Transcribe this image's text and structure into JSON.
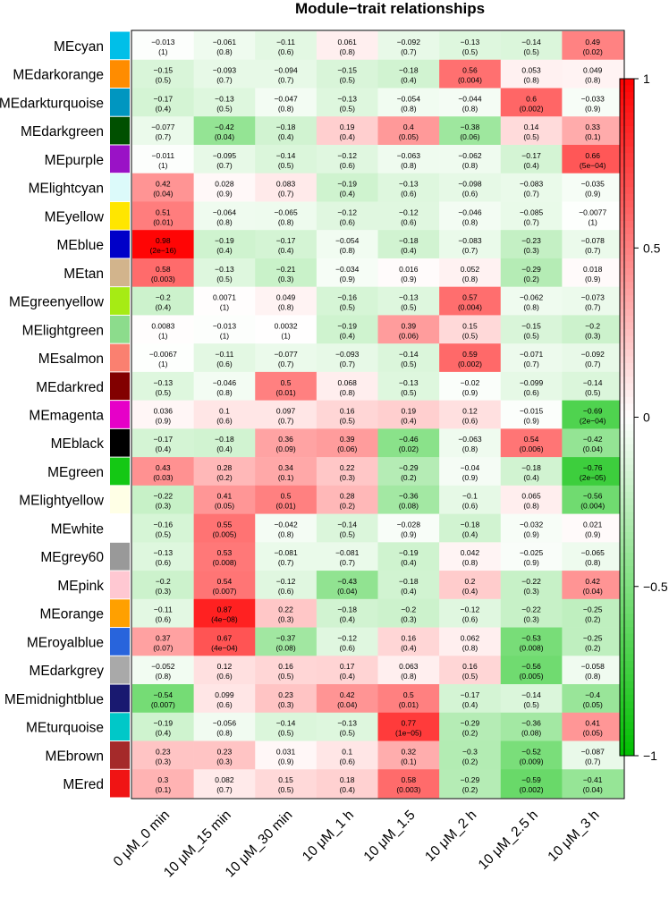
{
  "chart_data": {
    "type": "heatmap",
    "title": "Module−trait relationships",
    "columns": [
      "0 μM_0 min",
      "10 μM_15 min",
      "10 μM_30 min",
      "10 μM_1 h",
      "10 μM_1.5",
      "10 μM_2 h",
      "10 μM_2.5 h",
      "10 μM_3 h"
    ],
    "rows": [
      {
        "name": "MEcyan",
        "color": "#00BFE8",
        "cells": [
          [
            "−0.013",
            "(1)"
          ],
          [
            "−0.061",
            "(0.8)"
          ],
          [
            "−0.11",
            "(0.6)"
          ],
          [
            "0.061",
            "(0.8)"
          ],
          [
            "−0.092",
            "(0.7)"
          ],
          [
            "−0.13",
            "(0.5)"
          ],
          [
            "−0.14",
            "(0.5)"
          ],
          [
            "0.49",
            "(0.02)"
          ]
        ]
      },
      {
        "name": "MEdarkorange",
        "color": "#FF8C00",
        "cells": [
          [
            "−0.15",
            "(0.5)"
          ],
          [
            "−0.093",
            "(0.7)"
          ],
          [
            "−0.094",
            "(0.7)"
          ],
          [
            "−0.15",
            "(0.5)"
          ],
          [
            "−0.18",
            "(0.4)"
          ],
          [
            "0.56",
            "(0.004)"
          ],
          [
            "0.053",
            "(0.8)"
          ],
          [
            "0.049",
            "(0.8)"
          ]
        ]
      },
      {
        "name": "MEdarkturquoise",
        "color": "#0096C0",
        "cells": [
          [
            "−0.17",
            "(0.4)"
          ],
          [
            "−0.13",
            "(0.5)"
          ],
          [
            "−0.047",
            "(0.8)"
          ],
          [
            "−0.13",
            "(0.5)"
          ],
          [
            "−0.054",
            "(0.8)"
          ],
          [
            "−0.044",
            "(0.8)"
          ],
          [
            "0.6",
            "(0.002)"
          ],
          [
            "−0.033",
            "(0.9)"
          ]
        ]
      },
      {
        "name": "MEdarkgreen",
        "color": "#005000",
        "cells": [
          [
            "−0.077",
            "(0.7)"
          ],
          [
            "−0.42",
            "(0.04)"
          ],
          [
            "−0.18",
            "(0.4)"
          ],
          [
            "0.19",
            "(0.4)"
          ],
          [
            "0.4",
            "(0.05)"
          ],
          [
            "−0.38",
            "(0.06)"
          ],
          [
            "0.14",
            "(0.5)"
          ],
          [
            "0.33",
            "(0.1)"
          ]
        ]
      },
      {
        "name": "MEpurple",
        "color": "#9A12C6",
        "cells": [
          [
            "−0.011",
            "(1)"
          ],
          [
            "−0.095",
            "(0.7)"
          ],
          [
            "−0.14",
            "(0.5)"
          ],
          [
            "−0.12",
            "(0.6)"
          ],
          [
            "−0.063",
            "(0.8)"
          ],
          [
            "−0.062",
            "(0.8)"
          ],
          [
            "−0.17",
            "(0.4)"
          ],
          [
            "0.66",
            "(5e−04)"
          ]
        ]
      },
      {
        "name": "MElightcyan",
        "color": "#DCFAFA",
        "cells": [
          [
            "0.42",
            "(0.04)"
          ],
          [
            "0.028",
            "(0.9)"
          ],
          [
            "0.083",
            "(0.7)"
          ],
          [
            "−0.19",
            "(0.4)"
          ],
          [
            "−0.13",
            "(0.6)"
          ],
          [
            "−0.098",
            "(0.6)"
          ],
          [
            "−0.083",
            "(0.7)"
          ],
          [
            "−0.035",
            "(0.9)"
          ]
        ]
      },
      {
        "name": "MEyellow",
        "color": "#FFE600",
        "cells": [
          [
            "0.51",
            "(0.01)"
          ],
          [
            "−0.064",
            "(0.8)"
          ],
          [
            "−0.065",
            "(0.8)"
          ],
          [
            "−0.12",
            "(0.6)"
          ],
          [
            "−0.12",
            "(0.6)"
          ],
          [
            "−0.046",
            "(0.8)"
          ],
          [
            "−0.085",
            "(0.7)"
          ],
          [
            "−0.0077",
            "(1)"
          ]
        ]
      },
      {
        "name": "MEblue",
        "color": "#0000C8",
        "cells": [
          [
            "0.98",
            "(2e−16)"
          ],
          [
            "−0.19",
            "(0.4)"
          ],
          [
            "−0.17",
            "(0.4)"
          ],
          [
            "−0.054",
            "(0.8)"
          ],
          [
            "−0.18",
            "(0.4)"
          ],
          [
            "−0.083",
            "(0.7)"
          ],
          [
            "−0.23",
            "(0.3)"
          ],
          [
            "−0.078",
            "(0.7)"
          ]
        ]
      },
      {
        "name": "MEtan",
        "color": "#D2B48C",
        "cells": [
          [
            "0.58",
            "(0.003)"
          ],
          [
            "−0.13",
            "(0.5)"
          ],
          [
            "−0.21",
            "(0.3)"
          ],
          [
            "−0.034",
            "(0.9)"
          ],
          [
            "0.016",
            "(0.9)"
          ],
          [
            "0.052",
            "(0.8)"
          ],
          [
            "−0.29",
            "(0.2)"
          ],
          [
            "0.018",
            "(0.9)"
          ]
        ]
      },
      {
        "name": "MEgreenyellow",
        "color": "#A6EB14",
        "cells": [
          [
            "−0.2",
            "(0.4)"
          ],
          [
            "0.0071",
            "(1)"
          ],
          [
            "0.049",
            "(0.8)"
          ],
          [
            "−0.16",
            "(0.5)"
          ],
          [
            "−0.13",
            "(0.5)"
          ],
          [
            "0.57",
            "(0.004)"
          ],
          [
            "−0.062",
            "(0.8)"
          ],
          [
            "−0.073",
            "(0.7)"
          ]
        ]
      },
      {
        "name": "MElightgreen",
        "color": "#8CDC8C",
        "cells": [
          [
            "0.0083",
            "(1)"
          ],
          [
            "−0.013",
            "(1)"
          ],
          [
            "0.0032",
            "(1)"
          ],
          [
            "−0.19",
            "(0.4)"
          ],
          [
            "0.39",
            "(0.06)"
          ],
          [
            "0.15",
            "(0.5)"
          ],
          [
            "−0.15",
            "(0.5)"
          ],
          [
            "−0.2",
            "(0.3)"
          ]
        ]
      },
      {
        "name": "MEsalmon",
        "color": "#FA8070",
        "cells": [
          [
            "−0.0067",
            "(1)"
          ],
          [
            "−0.11",
            "(0.6)"
          ],
          [
            "−0.077",
            "(0.7)"
          ],
          [
            "−0.093",
            "(0.7)"
          ],
          [
            "−0.14",
            "(0.5)"
          ],
          [
            "0.59",
            "(0.002)"
          ],
          [
            "−0.071",
            "(0.7)"
          ],
          [
            "−0.092",
            "(0.7)"
          ]
        ]
      },
      {
        "name": "MEdarkred",
        "color": "#820000",
        "cells": [
          [
            "−0.13",
            "(0.5)"
          ],
          [
            "−0.046",
            "(0.8)"
          ],
          [
            "0.5",
            "(0.01)"
          ],
          [
            "0.068",
            "(0.8)"
          ],
          [
            "−0.13",
            "(0.5)"
          ],
          [
            "−0.02",
            "(0.9)"
          ],
          [
            "−0.099",
            "(0.6)"
          ],
          [
            "−0.14",
            "(0.5)"
          ]
        ]
      },
      {
        "name": "MEmagenta",
        "color": "#E600C8",
        "cells": [
          [
            "0.036",
            "(0.9)"
          ],
          [
            "0.1",
            "(0.6)"
          ],
          [
            "0.097",
            "(0.7)"
          ],
          [
            "0.16",
            "(0.5)"
          ],
          [
            "0.19",
            "(0.4)"
          ],
          [
            "0.12",
            "(0.6)"
          ],
          [
            "−0.015",
            "(0.9)"
          ],
          [
            "−0.69",
            "(2e−04)"
          ]
        ]
      },
      {
        "name": "MEblack",
        "color": "#000000",
        "cells": [
          [
            "−0.17",
            "(0.4)"
          ],
          [
            "−0.18",
            "(0.4)"
          ],
          [
            "0.36",
            "(0.09)"
          ],
          [
            "0.39",
            "(0.06)"
          ],
          [
            "−0.46",
            "(0.02)"
          ],
          [
            "−0.063",
            "(0.8)"
          ],
          [
            "0.54",
            "(0.006)"
          ],
          [
            "−0.42",
            "(0.04)"
          ]
        ]
      },
      {
        "name": "MEgreen",
        "color": "#14C814",
        "cells": [
          [
            "0.43",
            "(0.03)"
          ],
          [
            "0.28",
            "(0.2)"
          ],
          [
            "0.34",
            "(0.1)"
          ],
          [
            "0.22",
            "(0.3)"
          ],
          [
            "−0.29",
            "(0.2)"
          ],
          [
            "−0.04",
            "(0.9)"
          ],
          [
            "−0.18",
            "(0.4)"
          ],
          [
            "−0.76",
            "(2e−05)"
          ]
        ]
      },
      {
        "name": "MElightyellow",
        "color": "#FFFFE6",
        "cells": [
          [
            "−0.22",
            "(0.3)"
          ],
          [
            "0.41",
            "(0.05)"
          ],
          [
            "0.5",
            "(0.01)"
          ],
          [
            "0.28",
            "(0.2)"
          ],
          [
            "−0.36",
            "(0.08)"
          ],
          [
            "−0.1",
            "(0.6)"
          ],
          [
            "0.065",
            "(0.8)"
          ],
          [
            "−0.56",
            "(0.004)"
          ]
        ]
      },
      {
        "name": "MEwhite",
        "color": "#FFFFFF",
        "cells": [
          [
            "−0.16",
            "(0.5)"
          ],
          [
            "0.55",
            "(0.005)"
          ],
          [
            "−0.042",
            "(0.8)"
          ],
          [
            "−0.14",
            "(0.5)"
          ],
          [
            "−0.028",
            "(0.9)"
          ],
          [
            "−0.18",
            "(0.4)"
          ],
          [
            "−0.032",
            "(0.9)"
          ],
          [
            "0.021",
            "(0.9)"
          ]
        ]
      },
      {
        "name": "MEgrey60",
        "color": "#999999",
        "cells": [
          [
            "−0.13",
            "(0.6)"
          ],
          [
            "0.53",
            "(0.008)"
          ],
          [
            "−0.081",
            "(0.7)"
          ],
          [
            "−0.081",
            "(0.7)"
          ],
          [
            "−0.19",
            "(0.4)"
          ],
          [
            "0.042",
            "(0.8)"
          ],
          [
            "−0.025",
            "(0.9)"
          ],
          [
            "−0.065",
            "(0.8)"
          ]
        ]
      },
      {
        "name": "MEpink",
        "color": "#FFC8D2",
        "cells": [
          [
            "−0.2",
            "(0.3)"
          ],
          [
            "0.54",
            "(0.007)"
          ],
          [
            "−0.12",
            "(0.6)"
          ],
          [
            "−0.43",
            "(0.04)"
          ],
          [
            "−0.18",
            "(0.4)"
          ],
          [
            "0.2",
            "(0.4)"
          ],
          [
            "−0.22",
            "(0.3)"
          ],
          [
            "0.42",
            "(0.04)"
          ]
        ]
      },
      {
        "name": "MEorange",
        "color": "#FFA000",
        "cells": [
          [
            "−0.11",
            "(0.6)"
          ],
          [
            "0.87",
            "(4e−08)"
          ],
          [
            "0.22",
            "(0.3)"
          ],
          [
            "−0.18",
            "(0.4)"
          ],
          [
            "−0.2",
            "(0.3)"
          ],
          [
            "−0.12",
            "(0.6)"
          ],
          [
            "−0.22",
            "(0.3)"
          ],
          [
            "−0.25",
            "(0.2)"
          ]
        ]
      },
      {
        "name": "MEroyalblue",
        "color": "#2864DC",
        "cells": [
          [
            "0.37",
            "(0.07)"
          ],
          [
            "0.67",
            "(4e−04)"
          ],
          [
            "−0.37",
            "(0.08)"
          ],
          [
            "−0.12",
            "(0.6)"
          ],
          [
            "0.16",
            "(0.4)"
          ],
          [
            "0.062",
            "(0.8)"
          ],
          [
            "−0.53",
            "(0.008)"
          ],
          [
            "−0.25",
            "(0.2)"
          ]
        ]
      },
      {
        "name": "MEdarkgrey",
        "color": "#A9A9A9",
        "cells": [
          [
            "−0.052",
            "(0.8)"
          ],
          [
            "0.12",
            "(0.6)"
          ],
          [
            "0.16",
            "(0.5)"
          ],
          [
            "0.17",
            "(0.4)"
          ],
          [
            "0.063",
            "(0.8)"
          ],
          [
            "0.16",
            "(0.5)"
          ],
          [
            "−0.56",
            "(0.005)"
          ],
          [
            "−0.058",
            "(0.8)"
          ]
        ]
      },
      {
        "name": "MEmidnightblue",
        "color": "#191970",
        "cells": [
          [
            "−0.54",
            "(0.007)"
          ],
          [
            "0.099",
            "(0.6)"
          ],
          [
            "0.23",
            "(0.3)"
          ],
          [
            "0.42",
            "(0.04)"
          ],
          [
            "0.5",
            "(0.01)"
          ],
          [
            "−0.17",
            "(0.4)"
          ],
          [
            "−0.14",
            "(0.5)"
          ],
          [
            "−0.4",
            "(0.05)"
          ]
        ]
      },
      {
        "name": "MEturquoise",
        "color": "#00C8C8",
        "cells": [
          [
            "−0.19",
            "(0.4)"
          ],
          [
            "−0.056",
            "(0.8)"
          ],
          [
            "−0.14",
            "(0.5)"
          ],
          [
            "−0.13",
            "(0.5)"
          ],
          [
            "0.77",
            "(1e−05)"
          ],
          [
            "−0.29",
            "(0.2)"
          ],
          [
            "−0.36",
            "(0.08)"
          ],
          [
            "0.41",
            "(0.05)"
          ]
        ]
      },
      {
        "name": "MEbrown",
        "color": "#A52A2A",
        "cells": [
          [
            "0.23",
            "(0.3)"
          ],
          [
            "0.23",
            "(0.3)"
          ],
          [
            "0.031",
            "(0.9)"
          ],
          [
            "0.1",
            "(0.6)"
          ],
          [
            "0.32",
            "(0.1)"
          ],
          [
            "−0.3",
            "(0.2)"
          ],
          [
            "−0.52",
            "(0.009)"
          ],
          [
            "−0.087",
            "(0.7)"
          ]
        ]
      },
      {
        "name": "MEred",
        "color": "#F01414",
        "cells": [
          [
            "0.3",
            "(0.1)"
          ],
          [
            "0.082",
            "(0.7)"
          ],
          [
            "0.15",
            "(0.5)"
          ],
          [
            "0.18",
            "(0.4)"
          ],
          [
            "0.58",
            "(0.003)"
          ],
          [
            "−0.29",
            "(0.2)"
          ],
          [
            "−0.59",
            "(0.002)"
          ],
          [
            "−0.41",
            "(0.04)"
          ]
        ]
      }
    ],
    "colorscale": {
      "min": -1,
      "max": 1,
      "low": "#00BF00",
      "mid": "#FFFFFF",
      "high": "#FF0000",
      "ticks": [
        "1",
        "0.5",
        "0",
        "−0.5",
        "−1"
      ]
    }
  }
}
